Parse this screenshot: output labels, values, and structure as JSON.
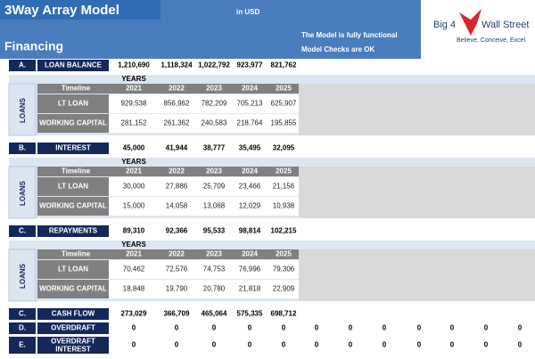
{
  "header": {
    "title": "3Way Array Model",
    "currency": "in USD",
    "section": "Financing",
    "status_lines": [
      "The Model is fully functional",
      "Model Checks are OK"
    ],
    "logo": {
      "left": "Big 4",
      "right": "Wall Street",
      "tagline": "Believe, Conceive, Excel"
    }
  },
  "sections": [
    {
      "row": {
        "label": "A.",
        "name": "LOAN BALANCE",
        "values": [
          "1,210,690",
          "1,118,324",
          "1,022,792",
          "923,977",
          "821,762"
        ]
      },
      "table": {
        "side": "LOANS",
        "years_label": "YEARS",
        "timeline": "Timeline",
        "years": [
          2021,
          2022,
          2023,
          2024,
          2025
        ],
        "rows": [
          {
            "name": "LT LOAN",
            "values": [
              "929,538",
              "856,962",
              "782,209",
              "705,213",
              "625,907"
            ]
          },
          {
            "name": "WORKING CAPITAL",
            "values": [
              "281,152",
              "261,362",
              "240,583",
              "218,764",
              "195,855"
            ]
          }
        ]
      }
    },
    {
      "row": {
        "label": "B.",
        "name": "INTEREST",
        "values": [
          "45,000",
          "41,944",
          "38,777",
          "35,495",
          "32,095"
        ]
      },
      "table": {
        "side": "LOANS",
        "years_label": "YEARS",
        "timeline": "Timeline",
        "years": [
          2021,
          2022,
          2023,
          2024,
          2025
        ],
        "rows": [
          {
            "name": "LT LOAN",
            "values": [
              "30,000",
              "27,886",
              "25,709",
              "23,466",
              "21,156"
            ]
          },
          {
            "name": "WORKING CAPITAL",
            "values": [
              "15,000",
              "14,058",
              "13,068",
              "12,029",
              "10,938"
            ]
          }
        ]
      }
    },
    {
      "row": {
        "label": "C.",
        "name": "REPAYMENTS",
        "values": [
          "89,310",
          "92,366",
          "95,533",
          "98,814",
          "102,215"
        ]
      },
      "table": {
        "side": "LOANS",
        "years_label": "YEARS",
        "timeline": "Timeline",
        "years": [
          2021,
          2022,
          2023,
          2024,
          2025
        ],
        "rows": [
          {
            "name": "LT LOAN",
            "values": [
              "70,462",
              "72,576",
              "74,753",
              "76,996",
              "79,306"
            ]
          },
          {
            "name": "WORKING CAPITAL",
            "values": [
              "18,848",
              "19,790",
              "20,780",
              "21,818",
              "22,909"
            ]
          }
        ]
      }
    }
  ],
  "totals": [
    {
      "label": "C.",
      "name": "CASH FLOW",
      "values": [
        "273,029",
        "366,709",
        "465,064",
        "575,335",
        "698,712"
      ]
    },
    {
      "label": "D.",
      "name": "OVERDRAFT",
      "values": [
        "0",
        "0",
        "0",
        "0",
        "0",
        "0",
        "0",
        "0",
        "0",
        "0",
        "0",
        "0"
      ]
    },
    {
      "label": "E.",
      "name": "OVERDRAFT INTEREST",
      "values": [
        "0",
        "0",
        "0",
        "0",
        "0",
        "0",
        "0",
        "0",
        "0",
        "0",
        "0",
        "0"
      ]
    }
  ]
}
